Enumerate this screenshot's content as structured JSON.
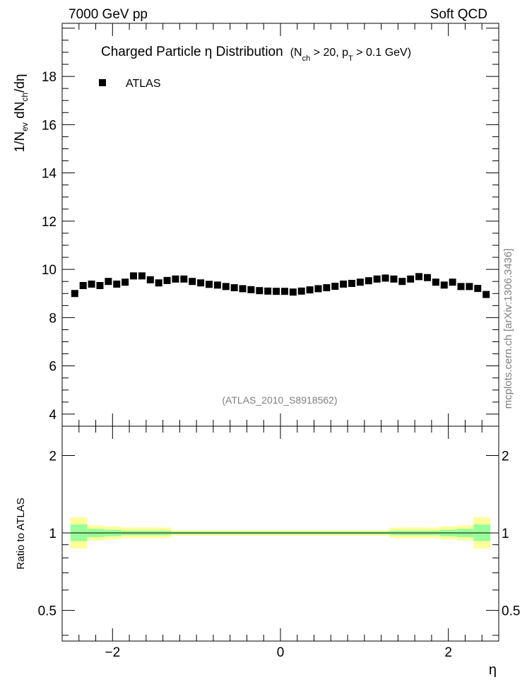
{
  "header": {
    "left": "7000 GeV pp",
    "right": "Soft QCD"
  },
  "side_label": "mcplots.cern.ch [arXiv:1306.3436]",
  "chart_data": [
    {
      "type": "scatter",
      "panel": "main",
      "title": {
        "main": "Charged Particle  η Distribution",
        "cond_open": "(N",
        "cond_sub1": "ch",
        "cond_mid": " > 20, p",
        "cond_sub2": "T",
        "cond_close": " > 0.1 GeV)"
      },
      "ylabel": {
        "p1": "1/N",
        "s1": "ev",
        "p2": " dN",
        "s2": "ch",
        "p3": "/dη"
      },
      "watermark": "(ATLAS_2010_S8918562)",
      "legend": {
        "label": "ATLAS",
        "placement": "top-left",
        "marker": "square",
        "color": "#000000"
      },
      "xlim": [
        -2.6,
        2.6
      ],
      "ylim": [
        3.5,
        20.2
      ],
      "yticks": [
        4,
        6,
        8,
        10,
        12,
        14,
        16,
        18
      ],
      "series": [
        {
          "name": "ATLAS",
          "x": [
            -2.45,
            -2.35,
            -2.25,
            -2.15,
            -2.05,
            -1.95,
            -1.85,
            -1.75,
            -1.65,
            -1.55,
            -1.45,
            -1.35,
            -1.25,
            -1.15,
            -1.05,
            -0.95,
            -0.85,
            -0.75,
            -0.65,
            -0.55,
            -0.45,
            -0.35,
            -0.25,
            -0.15,
            -0.05,
            0.05,
            0.15,
            0.25,
            0.35,
            0.45,
            0.55,
            0.65,
            0.75,
            0.85,
            0.95,
            1.05,
            1.15,
            1.25,
            1.35,
            1.45,
            1.55,
            1.65,
            1.75,
            1.85,
            1.95,
            2.05,
            2.15,
            2.25,
            2.35,
            2.45
          ],
          "y": [
            9.0,
            9.33,
            9.39,
            9.33,
            9.5,
            9.39,
            9.47,
            9.73,
            9.73,
            9.57,
            9.44,
            9.54,
            9.6,
            9.6,
            9.5,
            9.44,
            9.38,
            9.35,
            9.29,
            9.24,
            9.2,
            9.16,
            9.12,
            9.1,
            9.09,
            9.09,
            9.06,
            9.1,
            9.15,
            9.2,
            9.24,
            9.3,
            9.39,
            9.42,
            9.47,
            9.53,
            9.6,
            9.64,
            9.6,
            9.5,
            9.6,
            9.7,
            9.66,
            9.47,
            9.35,
            9.47,
            9.29,
            9.29,
            9.21,
            8.96
          ]
        }
      ]
    },
    {
      "type": "area",
      "panel": "ratio",
      "ylabel": "Ratio to ATLAS",
      "xlabel": "η",
      "xlim": [
        -2.6,
        2.6
      ],
      "ylim": [
        0.38,
        2.6
      ],
      "yscale": "log",
      "yticks": [
        0.5,
        1,
        2
      ],
      "xticks": [
        -2,
        0,
        2
      ],
      "bands": [
        {
          "kind": "total",
          "color": "#ffff99",
          "edges": [
            -2.5,
            -2.3,
            -2.1,
            -1.9,
            -1.3,
            1.3,
            1.9,
            2.1,
            2.3,
            2.5
          ],
          "lo": [
            0.87,
            0.935,
            0.945,
            0.955,
            0.975,
            0.955,
            0.945,
            0.935,
            0.87
          ],
          "hi": [
            1.15,
            1.07,
            1.06,
            1.05,
            1.025,
            1.05,
            1.06,
            1.07,
            1.15
          ]
        },
        {
          "kind": "stat",
          "color": "#99ff99",
          "edges": [
            -2.5,
            -2.3,
            -2.1,
            -1.9,
            -1.3,
            1.3,
            1.9,
            2.1,
            2.3,
            2.5
          ],
          "lo": [
            0.93,
            0.963,
            0.97,
            0.98,
            0.988,
            0.98,
            0.97,
            0.963,
            0.93
          ],
          "hi": [
            1.08,
            1.038,
            1.03,
            1.02,
            1.012,
            1.02,
            1.03,
            1.038,
            1.08
          ]
        }
      ],
      "reference_line": 1
    }
  ]
}
